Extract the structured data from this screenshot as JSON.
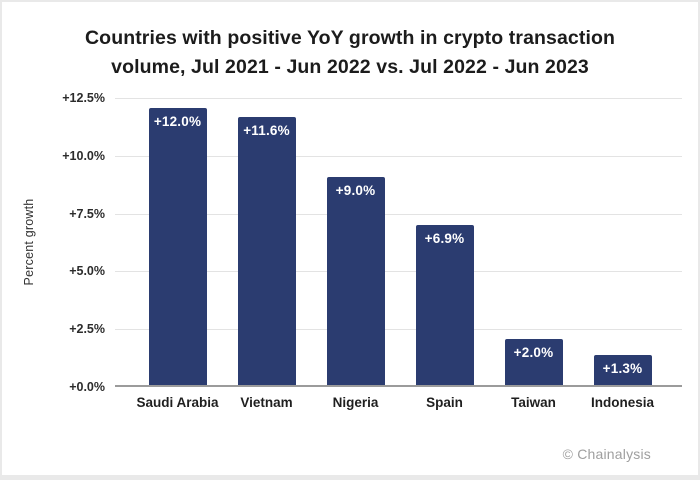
{
  "chart_data": {
    "type": "bar",
    "title_line1": "Countries with positive YoY growth in crypto transaction",
    "title_line2": "volume, Jul 2021 - Jun 2022 vs. Jul 2022 - Jun 2023",
    "ylabel": "Percent growth",
    "xlabel": "",
    "categories": [
      "Saudi Arabia",
      "Vietnam",
      "Nigeria",
      "Spain",
      "Taiwan",
      "Indonesia"
    ],
    "values": [
      12.0,
      11.6,
      9.0,
      6.9,
      2.0,
      1.3
    ],
    "bar_labels": [
      "+12.0%",
      "+11.6%",
      "+9.0%",
      "+6.9%",
      "+2.0%",
      "+1.3%"
    ],
    "y_ticks": [
      {
        "label": "+12.5%",
        "value": 12.5
      },
      {
        "label": "+10.0%",
        "value": 10.0
      },
      {
        "label": "+7.5%",
        "value": 7.5
      },
      {
        "label": "+5.0%",
        "value": 5.0
      },
      {
        "label": "+2.5%",
        "value": 2.5
      },
      {
        "label": "+0.0%",
        "value": 0.0
      }
    ],
    "ylim": [
      0,
      12.5
    ],
    "grid": true,
    "legend": "none",
    "bar_color": "#2b3c70",
    "bar_value_label_color": "#ffffff"
  },
  "footer": {
    "credit": "© Chainalysis"
  },
  "colors": {
    "background": "#ffffff",
    "page_edge": "#e9e9e9",
    "title_text": "#1c1c1c",
    "tick_text": "#2c2c2c",
    "gridline": "#e3e3e3",
    "axis_line": "#9b9b9b",
    "credit_text": "#9f9f9f"
  }
}
